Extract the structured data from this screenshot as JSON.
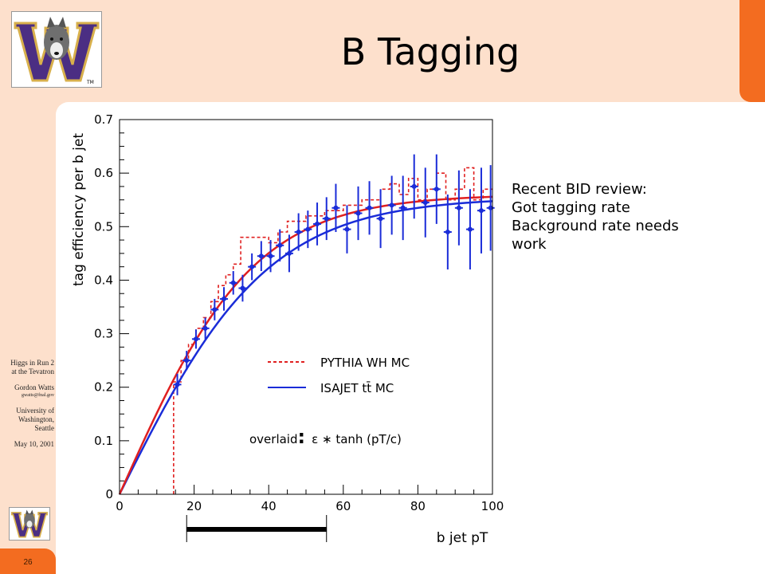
{
  "slide": {
    "title": "B Tagging",
    "page_number": "26",
    "accent_color": "#f36c20",
    "background_color": "#fde0cc"
  },
  "sidebar": {
    "line1": "Higgs in Run 2",
    "line2": "at the Tevatron",
    "author": "Gordon Watts",
    "email": "gwatts@fnal.gov",
    "inst1": "University of",
    "inst2": "Washington,",
    "inst3": "Seattle",
    "date": "May 10, 2001"
  },
  "logos": {
    "large_icon": "uw-husky-w-logo-icon",
    "small_icon": "uw-husky-w-logo-icon",
    "letter": "W",
    "trademark": "TM",
    "purple": "#4b2e83",
    "gold": "#d8b04c"
  },
  "notes": {
    "line1": "Recent BID review:",
    "line2": "Got tagging rate",
    "line3": "Background rate needs",
    "line4": "work"
  },
  "chart_data": {
    "type": "scatter",
    "ylabel": "tag efficiency per b jet",
    "xlabel": "b jet pT",
    "xlim": [
      0,
      100
    ],
    "ylim": [
      0,
      0.7
    ],
    "xticks": [
      "0",
      "20",
      "40",
      "60",
      "80",
      "100"
    ],
    "yticks": [
      "0",
      "0.1",
      "0.2",
      "0.3",
      "0.4",
      "0.5",
      "0.6",
      "0.7"
    ],
    "legend": {
      "pythia": "PYTHIA WH MC",
      "isajet": "ISAJET tt̄ MC"
    },
    "overlay_text": {
      "word": "overlaid",
      "colon": ":",
      "formula": "ε ∗ tanh (pT/c)"
    },
    "colors": {
      "pythia": "#e02020",
      "isajet": "#1a2cd8"
    },
    "bar_range": [
      18,
      55.5
    ],
    "fits": {
      "pythia": {
        "scale": 0.56,
        "c": 36
      },
      "isajet": {
        "scale": 0.555,
        "c": 40
      }
    },
    "pythia_histogram": [
      {
        "x0": 14.5,
        "x1": 16.5,
        "y": 0.21
      },
      {
        "x0": 16.5,
        "x1": 18.5,
        "y": 0.25
      },
      {
        "x0": 18.5,
        "x1": 20.5,
        "y": 0.28
      },
      {
        "x0": 20.5,
        "x1": 22.5,
        "y": 0.31
      },
      {
        "x0": 22.5,
        "x1": 24.5,
        "y": 0.33
      },
      {
        "x0": 24.5,
        "x1": 26.5,
        "y": 0.36
      },
      {
        "x0": 26.5,
        "x1": 28.5,
        "y": 0.39
      },
      {
        "x0": 28.5,
        "x1": 30.5,
        "y": 0.41
      },
      {
        "x0": 30.5,
        "x1": 32.5,
        "y": 0.43
      },
      {
        "x0": 32.5,
        "x1": 35,
        "y": 0.48
      },
      {
        "x0": 35,
        "x1": 40,
        "y": 0.48
      },
      {
        "x0": 40,
        "x1": 42.5,
        "y": 0.47
      },
      {
        "x0": 42.5,
        "x1": 45,
        "y": 0.49
      },
      {
        "x0": 45,
        "x1": 50,
        "y": 0.51
      },
      {
        "x0": 50,
        "x1": 55,
        "y": 0.52
      },
      {
        "x0": 55,
        "x1": 60,
        "y": 0.53
      },
      {
        "x0": 60,
        "x1": 65,
        "y": 0.54
      },
      {
        "x0": 65,
        "x1": 70,
        "y": 0.55
      },
      {
        "x0": 70,
        "x1": 72.5,
        "y": 0.57
      },
      {
        "x0": 72.5,
        "x1": 75,
        "y": 0.58
      },
      {
        "x0": 75,
        "x1": 77.5,
        "y": 0.56
      },
      {
        "x0": 77.5,
        "x1": 80,
        "y": 0.59
      },
      {
        "x0": 80,
        "x1": 82.5,
        "y": 0.55
      },
      {
        "x0": 82.5,
        "x1": 85,
        "y": 0.57
      },
      {
        "x0": 85,
        "x1": 87.5,
        "y": 0.6
      },
      {
        "x0": 87.5,
        "x1": 90,
        "y": 0.55
      },
      {
        "x0": 90,
        "x1": 92.5,
        "y": 0.57
      },
      {
        "x0": 92.5,
        "x1": 95,
        "y": 0.61
      },
      {
        "x0": 95,
        "x1": 97.5,
        "y": 0.55
      },
      {
        "x0": 97.5,
        "x1": 100,
        "y": 0.57
      }
    ],
    "isajet_points": [
      {
        "x": 15.5,
        "y": 0.205,
        "err": 0.02
      },
      {
        "x": 18,
        "y": 0.25,
        "err": 0.018
      },
      {
        "x": 20.5,
        "y": 0.29,
        "err": 0.018
      },
      {
        "x": 23,
        "y": 0.31,
        "err": 0.02
      },
      {
        "x": 25.5,
        "y": 0.345,
        "err": 0.02
      },
      {
        "x": 28,
        "y": 0.365,
        "err": 0.022
      },
      {
        "x": 30.5,
        "y": 0.395,
        "err": 0.022
      },
      {
        "x": 33,
        "y": 0.385,
        "err": 0.025
      },
      {
        "x": 35.5,
        "y": 0.425,
        "err": 0.025
      },
      {
        "x": 38,
        "y": 0.445,
        "err": 0.028
      },
      {
        "x": 40.5,
        "y": 0.445,
        "err": 0.03
      },
      {
        "x": 43,
        "y": 0.465,
        "err": 0.03
      },
      {
        "x": 45.5,
        "y": 0.45,
        "err": 0.035
      },
      {
        "x": 48,
        "y": 0.49,
        "err": 0.035
      },
      {
        "x": 50.5,
        "y": 0.495,
        "err": 0.035
      },
      {
        "x": 53,
        "y": 0.505,
        "err": 0.04
      },
      {
        "x": 55.5,
        "y": 0.515,
        "err": 0.04
      },
      {
        "x": 58,
        "y": 0.535,
        "err": 0.045
      },
      {
        "x": 61,
        "y": 0.495,
        "err": 0.045
      },
      {
        "x": 64,
        "y": 0.525,
        "err": 0.05
      },
      {
        "x": 67,
        "y": 0.535,
        "err": 0.05
      },
      {
        "x": 70,
        "y": 0.515,
        "err": 0.055
      },
      {
        "x": 73,
        "y": 0.54,
        "err": 0.055
      },
      {
        "x": 76,
        "y": 0.535,
        "err": 0.06
      },
      {
        "x": 79,
        "y": 0.575,
        "err": 0.06
      },
      {
        "x": 82,
        "y": 0.545,
        "err": 0.065
      },
      {
        "x": 85,
        "y": 0.57,
        "err": 0.065
      },
      {
        "x": 88,
        "y": 0.49,
        "err": 0.07
      },
      {
        "x": 91,
        "y": 0.535,
        "err": 0.07
      },
      {
        "x": 94,
        "y": 0.495,
        "err": 0.075
      },
      {
        "x": 97,
        "y": 0.53,
        "err": 0.08
      },
      {
        "x": 99.5,
        "y": 0.535,
        "err": 0.08
      }
    ]
  }
}
